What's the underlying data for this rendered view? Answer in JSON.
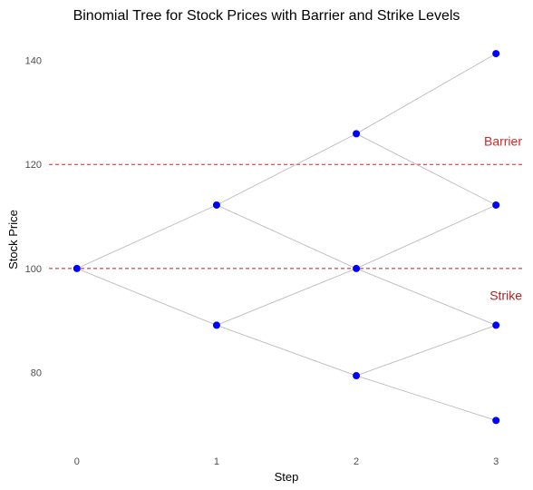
{
  "chart_data": {
    "type": "scatter",
    "title": "Binomial Tree for Stock Prices with Barrier and Strike Levels",
    "xlabel": "Step",
    "ylabel": "Stock Price",
    "xlim": [
      -0.2,
      3.2
    ],
    "ylim": [
      66.5,
      145.5
    ],
    "x_ticks": [
      0,
      1,
      2,
      3
    ],
    "y_ticks": [
      80,
      100,
      120,
      140
    ],
    "grid": false,
    "node_color": "#0000ff",
    "edge_color": "#b3b3b3",
    "nodes": [
      {
        "x": 0,
        "y": 100.0
      },
      {
        "x": 1,
        "y": 112.2
      },
      {
        "x": 1,
        "y": 89.1
      },
      {
        "x": 2,
        "y": 125.9
      },
      {
        "x": 2,
        "y": 100.0
      },
      {
        "x": 2,
        "y": 79.4
      },
      {
        "x": 3,
        "y": 141.3
      },
      {
        "x": 3,
        "y": 112.2
      },
      {
        "x": 3,
        "y": 89.1
      },
      {
        "x": 3,
        "y": 70.8
      }
    ],
    "edges": [
      [
        0,
        1
      ],
      [
        0,
        2
      ],
      [
        1,
        3
      ],
      [
        1,
        4
      ],
      [
        2,
        4
      ],
      [
        2,
        5
      ],
      [
        3,
        6
      ],
      [
        3,
        7
      ],
      [
        4,
        7
      ],
      [
        4,
        8
      ],
      [
        5,
        8
      ],
      [
        5,
        9
      ]
    ],
    "reference_lines": [
      {
        "label": "Barrier",
        "y": 120,
        "color": "#d62728",
        "label_x": 3,
        "label_y": 124.5
      },
      {
        "label": "Strike",
        "y": 100,
        "color": "#b22222",
        "label_x": 3,
        "label_y": 94.8
      }
    ]
  }
}
